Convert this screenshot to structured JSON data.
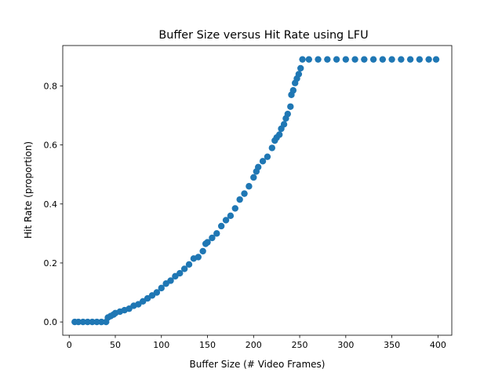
{
  "chart_data": {
    "type": "scatter",
    "title": "Buffer Size versus Hit Rate using LFU",
    "xlabel": "Buffer Size (# Video Frames)",
    "ylabel": "Hit Rate (proportion)",
    "xlim": [
      -7,
      415
    ],
    "ylim": [
      -0.045,
      0.937
    ],
    "x_ticks": [
      0,
      50,
      100,
      150,
      200,
      250,
      300,
      350,
      400
    ],
    "x_tick_labels": [
      "0",
      "50",
      "100",
      "150",
      "200",
      "250",
      "300",
      "350",
      "400"
    ],
    "y_ticks": [
      0.0,
      0.2,
      0.4,
      0.6,
      0.8
    ],
    "y_tick_labels": [
      "0.0",
      "0.2",
      "0.4",
      "0.6",
      "0.8"
    ],
    "grid": false,
    "marker_color": "#1f77b4",
    "series": [
      {
        "x": [
          6,
          10,
          15,
          20,
          25,
          30,
          35,
          40,
          42,
          45,
          48,
          50,
          55,
          60,
          65,
          70,
          75,
          80,
          85,
          90,
          95,
          100,
          105,
          110,
          115,
          120,
          125,
          130,
          135,
          140,
          145,
          148,
          150,
          155,
          160,
          165,
          170,
          175,
          180,
          185,
          190,
          195,
          200,
          203,
          205,
          210,
          215,
          220,
          223,
          225,
          228,
          230,
          233,
          235,
          237,
          240,
          241,
          243,
          245,
          247,
          249,
          251,
          253,
          260,
          270,
          280,
          290,
          300,
          310,
          320,
          330,
          340,
          350,
          360,
          370,
          380,
          390,
          398
        ],
        "y": [
          0.0,
          0.0,
          0.0,
          0.0,
          0.0,
          0.0,
          0.0,
          0.0,
          0.015,
          0.02,
          0.025,
          0.03,
          0.035,
          0.04,
          0.045,
          0.055,
          0.06,
          0.07,
          0.08,
          0.09,
          0.1,
          0.115,
          0.13,
          0.14,
          0.155,
          0.165,
          0.18,
          0.195,
          0.215,
          0.22,
          0.24,
          0.265,
          0.27,
          0.285,
          0.3,
          0.325,
          0.345,
          0.36,
          0.385,
          0.415,
          0.435,
          0.46,
          0.49,
          0.51,
          0.525,
          0.545,
          0.56,
          0.59,
          0.615,
          0.625,
          0.635,
          0.655,
          0.67,
          0.69,
          0.705,
          0.73,
          0.77,
          0.785,
          0.81,
          0.825,
          0.84,
          0.86,
          0.89,
          0.89,
          0.89,
          0.89,
          0.89,
          0.89,
          0.89,
          0.89,
          0.89,
          0.89,
          0.89,
          0.89,
          0.89,
          0.89,
          0.89,
          0.89
        ]
      }
    ]
  }
}
